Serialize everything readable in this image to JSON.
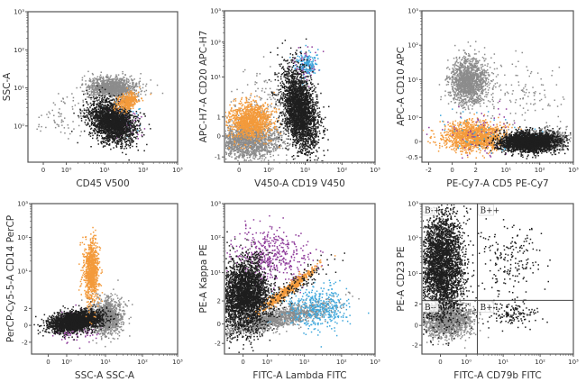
{
  "figure": {
    "title": "",
    "panel_count": 6
  },
  "colors": {
    "black_population": "#1e1e1e",
    "gray_population": "#8c8c8c",
    "orange_population": "#f39a3b",
    "purple_population": "#8e3a9a",
    "blue_population": "#3ea7dc",
    "axis": "#555555",
    "quadrant_line": "#444444"
  },
  "chart_data": [
    {
      "id": "p1",
      "type": "scatter",
      "title": "",
      "xlabel": "CD45 V500",
      "ylabel": "SSC-A",
      "x_ticks": [
        {
          "label": "0",
          "scale": 0.4
        },
        {
          "label": "10⁰",
          "scale": 1
        },
        {
          "label": "10¹",
          "scale": 2
        },
        {
          "label": "10²",
          "scale": 3
        },
        {
          "label": "10³",
          "scale": 3.9
        }
      ],
      "y_ticks": [
        {
          "label": "10⁰",
          "scale": 1
        },
        {
          "label": "10¹",
          "scale": 2
        },
        {
          "label": "10²",
          "scale": 3
        },
        {
          "label": "10³",
          "scale": 4
        }
      ],
      "xlim": [
        0,
        3.9
      ],
      "ylim": [
        0.05,
        4
      ],
      "populations": [
        {
          "name": "gray-debris-tail",
          "color": "gray_population",
          "n": 90,
          "cx": 1.1,
          "cy": 1.3,
          "sx": 0.55,
          "sy": 0.3,
          "rot": 20
        },
        {
          "name": "gray-granulocytes",
          "color": "gray_population",
          "n": 1200,
          "cx": 2.2,
          "cy": 2.0,
          "sx": 0.32,
          "sy": 0.14,
          "rot": 0
        },
        {
          "name": "purple-lymph-edge",
          "color": "purple_population",
          "n": 120,
          "cx": 2.45,
          "cy": 1.15,
          "sx": 0.2,
          "sy": 0.25,
          "rot": 55
        },
        {
          "name": "blue-lymph-edge",
          "color": "blue_population",
          "n": 60,
          "cx": 2.5,
          "cy": 1.2,
          "sx": 0.18,
          "sy": 0.22,
          "rot": 55
        },
        {
          "name": "black-lymphocytes",
          "color": "black_population",
          "n": 2200,
          "cx": 2.2,
          "cy": 1.1,
          "sx": 0.24,
          "sy": 0.32,
          "rot": 50
        },
        {
          "name": "orange-monocytes",
          "color": "orange_population",
          "n": 380,
          "cx": 2.6,
          "cy": 1.65,
          "sx": 0.14,
          "sy": 0.1,
          "rot": 30
        }
      ]
    },
    {
      "id": "p2",
      "type": "scatter",
      "title": "",
      "xlabel": "V450-A CD19 V450",
      "ylabel": "APC-H7-A CD20 APC-H7",
      "x_ticks": [
        {
          "label": "0",
          "scale": 0.4
        },
        {
          "label": "10⁰",
          "scale": 1.2
        },
        {
          "label": "10¹",
          "scale": 2.2
        },
        {
          "label": "10²",
          "scale": 3.2
        },
        {
          "label": "10³",
          "scale": 4.1
        }
      ],
      "y_ticks": [
        {
          "label": "-1",
          "scale": -0.6
        },
        {
          "label": "0",
          "scale": 0
        },
        {
          "label": "1",
          "scale": 0.55
        },
        {
          "label": "10¹",
          "scale": 1.7
        },
        {
          "label": "10²",
          "scale": 2.7
        },
        {
          "label": "10³",
          "scale": 3.6
        }
      ],
      "xlim": [
        0,
        4.1
      ],
      "ylim": [
        -0.75,
        3.6
      ],
      "populations": [
        {
          "name": "gray-neg",
          "color": "gray_population",
          "n": 1500,
          "cx": 0.65,
          "cy": -0.15,
          "sx": 0.45,
          "sy": 0.25,
          "rot": 0
        },
        {
          "name": "gray-sparse",
          "color": "gray_population",
          "n": 150,
          "cx": 1.0,
          "cy": 0.9,
          "sx": 0.5,
          "sy": 0.5,
          "rot": 30
        },
        {
          "name": "orange-monocytes",
          "color": "orange_population",
          "n": 1100,
          "cx": 0.7,
          "cy": 0.45,
          "sx": 0.3,
          "sy": 0.26,
          "rot": 0
        },
        {
          "name": "purple-b-top",
          "color": "purple_population",
          "n": 70,
          "cx": 2.2,
          "cy": 2.0,
          "sx": 0.15,
          "sy": 0.25,
          "rot": 0
        },
        {
          "name": "blue-b-top",
          "color": "blue_population",
          "n": 160,
          "cx": 2.25,
          "cy": 2.05,
          "sx": 0.14,
          "sy": 0.18,
          "rot": 0
        },
        {
          "name": "black-b-cells",
          "color": "black_population",
          "n": 2600,
          "cx": 2.05,
          "cy": 0.75,
          "sx": 0.22,
          "sy": 0.6,
          "rot": 10
        }
      ]
    },
    {
      "id": "p3",
      "type": "scatter",
      "title": "",
      "xlabel": "PE-Cy7-A CD5 PE-Cy7",
      "ylabel": "APC-A CD10 APC",
      "x_ticks": [
        {
          "label": "-2",
          "scale": -0.7
        },
        {
          "label": "0",
          "scale": 0
        },
        {
          "label": "2",
          "scale": 0.7
        },
        {
          "label": "10¹",
          "scale": 1.6
        },
        {
          "label": "10²",
          "scale": 2.6
        },
        {
          "label": "10³",
          "scale": 3.6
        }
      ],
      "y_ticks": [
        {
          "label": "-0.5",
          "scale": -0.45
        },
        {
          "label": "0",
          "scale": 0
        },
        {
          "label": "10⁰",
          "scale": 0.7
        },
        {
          "label": "10¹",
          "scale": 1.8
        },
        {
          "label": "10²",
          "scale": 2.8
        },
        {
          "label": "10³",
          "scale": 3.8
        }
      ],
      "xlim": [
        -0.9,
        3.6
      ],
      "ylim": [
        -0.6,
        3.8
      ],
      "populations": [
        {
          "name": "gray-cd10pos",
          "color": "gray_population",
          "n": 1400,
          "cx": 0.5,
          "cy": 1.75,
          "sx": 0.28,
          "sy": 0.35,
          "rot": 0
        },
        {
          "name": "sparse-scatter",
          "color": "gray_population",
          "n": 120,
          "cx": 2.0,
          "cy": 1.3,
          "sx": 0.6,
          "sy": 0.5,
          "rot": 0
        },
        {
          "name": "gray-right-tail",
          "color": "gray_population",
          "n": 400,
          "cx": 3.0,
          "cy": 0.05,
          "sx": 0.2,
          "sy": 0.16,
          "rot": 0
        },
        {
          "name": "orange-monocytes",
          "color": "orange_population",
          "n": 1500,
          "cx": 0.65,
          "cy": 0.15,
          "sx": 0.45,
          "sy": 0.2,
          "rot": 0
        },
        {
          "name": "purple-mixed",
          "color": "purple_population",
          "n": 70,
          "cx": 0.8,
          "cy": 0.2,
          "sx": 0.7,
          "sy": 0.35,
          "rot": 0
        },
        {
          "name": "blue-mixed",
          "color": "blue_population",
          "n": 50,
          "cx": 0.9,
          "cy": 0.3,
          "sx": 0.7,
          "sy": 0.35,
          "rot": 0
        },
        {
          "name": "black-b-cells",
          "color": "black_population",
          "n": 2600,
          "cx": 2.3,
          "cy": -0.02,
          "sx": 0.42,
          "sy": 0.14,
          "rot": 0
        }
      ]
    },
    {
      "id": "p4",
      "type": "scatter",
      "title": "",
      "xlabel": "SSC-A SSC-A",
      "ylabel": "PerCP-Cy5-5-A CD14 PerCP",
      "x_ticks": [
        {
          "label": "0",
          "scale": 0.45
        },
        {
          "label": "10⁰",
          "scale": 0.95
        },
        {
          "label": "10¹",
          "scale": 2.0
        },
        {
          "label": "10²",
          "scale": 3.0
        },
        {
          "label": "10³",
          "scale": 3.95
        }
      ],
      "y_ticks": [
        {
          "label": "-2",
          "scale": -0.5
        },
        {
          "label": "0",
          "scale": 0
        },
        {
          "label": "2",
          "scale": 0.5
        },
        {
          "label": "10¹",
          "scale": 1.6
        },
        {
          "label": "10²",
          "scale": 2.6
        },
        {
          "label": "10³",
          "scale": 3.6
        }
      ],
      "xlim": [
        0,
        3.95
      ],
      "ylim": [
        -0.85,
        3.6
      ],
      "populations": [
        {
          "name": "purple-lymph-edge",
          "color": "purple_population",
          "n": 160,
          "cx": 1.25,
          "cy": -0.05,
          "sx": 0.3,
          "sy": 0.2,
          "rot": 0
        },
        {
          "name": "gray-granulocytes",
          "color": "gray_population",
          "n": 1100,
          "cx": 2.05,
          "cy": 0.25,
          "sx": 0.2,
          "sy": 0.25,
          "rot": 0
        },
        {
          "name": "black-lymphocytes",
          "color": "black_population",
          "n": 2400,
          "cx": 1.2,
          "cy": 0.12,
          "sx": 0.35,
          "sy": 0.14,
          "rot": 10
        },
        {
          "name": "orange-monocytes",
          "color": "orange_population",
          "n": 900,
          "cx": 1.62,
          "cy": 1.6,
          "sx": 0.1,
          "sy": 0.45,
          "rot": 0
        }
      ]
    },
    {
      "id": "p5",
      "type": "scatter",
      "title": "",
      "xlabel": "FITC-A Lambda FITC",
      "ylabel": "PE-A Kappa PE",
      "x_ticks": [
        {
          "label": "0",
          "scale": 0.5
        },
        {
          "label": "10⁰",
          "scale": 1.15
        },
        {
          "label": "10¹",
          "scale": 2.15
        },
        {
          "label": "10²",
          "scale": 3.15
        },
        {
          "label": "10³",
          "scale": 4.05
        }
      ],
      "y_ticks": [
        {
          "label": "-2",
          "scale": -0.55
        },
        {
          "label": "0",
          "scale": 0
        },
        {
          "label": "2",
          "scale": 0.65
        },
        {
          "label": "10¹",
          "scale": 1.45
        },
        {
          "label": "10²",
          "scale": 2.45
        },
        {
          "label": "10³",
          "scale": 3.4
        }
      ],
      "xlim": [
        0,
        4.05
      ],
      "ylim": [
        -0.85,
        3.4
      ],
      "populations": [
        {
          "name": "purple-kappa",
          "color": "purple_population",
          "n": 450,
          "cx": 1.25,
          "cy": 1.9,
          "sx": 0.55,
          "sy": 0.4,
          "rot": 0
        },
        {
          "name": "gray-diagonal",
          "color": "gray_population",
          "n": 1300,
          "cx": 1.4,
          "cy": 0.15,
          "sx": 0.75,
          "sy": 0.14,
          "rot": 14
        },
        {
          "name": "blue-lambda",
          "color": "blue_population",
          "n": 420,
          "cx": 2.5,
          "cy": 0.45,
          "sx": 0.45,
          "sy": 0.3,
          "rot": 0
        },
        {
          "name": "black-b-cells",
          "color": "black_population",
          "n": 3000,
          "cx": 0.55,
          "cy": 0.8,
          "sx": 0.33,
          "sy": 0.5,
          "rot": 0
        },
        {
          "name": "orange-doublet-diag",
          "color": "orange_population",
          "n": 600,
          "cx": 1.75,
          "cy": 1.0,
          "sx": 0.4,
          "sy": 0.06,
          "rot": 40
        },
        {
          "name": "black-diag-sparse",
          "color": "black_population",
          "n": 140,
          "cx": 1.9,
          "cy": 1.05,
          "sx": 0.6,
          "sy": 0.15,
          "rot": 38
        }
      ]
    },
    {
      "id": "p6",
      "type": "scatter",
      "title": "",
      "xlabel": "FITC-A CD79b FITC",
      "ylabel": "PE-A CD23 PE",
      "x_ticks": [
        {
          "label": "0",
          "scale": 0.5
        },
        {
          "label": "10⁰",
          "scale": 1.2
        },
        {
          "label": "10¹",
          "scale": 2.2
        },
        {
          "label": "10²",
          "scale": 3.2
        },
        {
          "label": "10³",
          "scale": 4.1
        }
      ],
      "y_ticks": [
        {
          "label": "-2",
          "scale": -0.55
        },
        {
          "label": "0",
          "scale": 0
        },
        {
          "label": "2",
          "scale": 0.6
        },
        {
          "label": "10¹",
          "scale": 1.45
        },
        {
          "label": "10²",
          "scale": 2.45
        },
        {
          "label": "10³",
          "scale": 3.4
        }
      ],
      "xlim": [
        0,
        4.1
      ],
      "ylim": [
        -0.8,
        3.4
      ],
      "quadrant_gate": {
        "x": 1.5,
        "y": 0.7
      },
      "quadrant_labels": {
        "top_left": "B-+",
        "top_right": "B++",
        "bottom_left": "B--",
        "bottom_right": "B+-"
      },
      "populations": [
        {
          "name": "gray-negative",
          "color": "gray_population",
          "n": 1400,
          "cx": 0.7,
          "cy": 0.15,
          "sx": 0.35,
          "sy": 0.25,
          "rot": 0
        },
        {
          "name": "black-cd23pos",
          "color": "black_population",
          "n": 3000,
          "cx": 0.55,
          "cy": 1.7,
          "sx": 0.3,
          "sy": 0.75,
          "rot": 0
        },
        {
          "name": "black-cd79b-sparse-upper",
          "color": "black_population",
          "n": 180,
          "cx": 2.35,
          "cy": 1.8,
          "sx": 0.45,
          "sy": 0.5,
          "rot": 0
        },
        {
          "name": "black-cd79b-sparse-lower",
          "color": "black_population",
          "n": 160,
          "cx": 2.4,
          "cy": 0.35,
          "sx": 0.4,
          "sy": 0.2,
          "rot": 0
        }
      ]
    }
  ]
}
